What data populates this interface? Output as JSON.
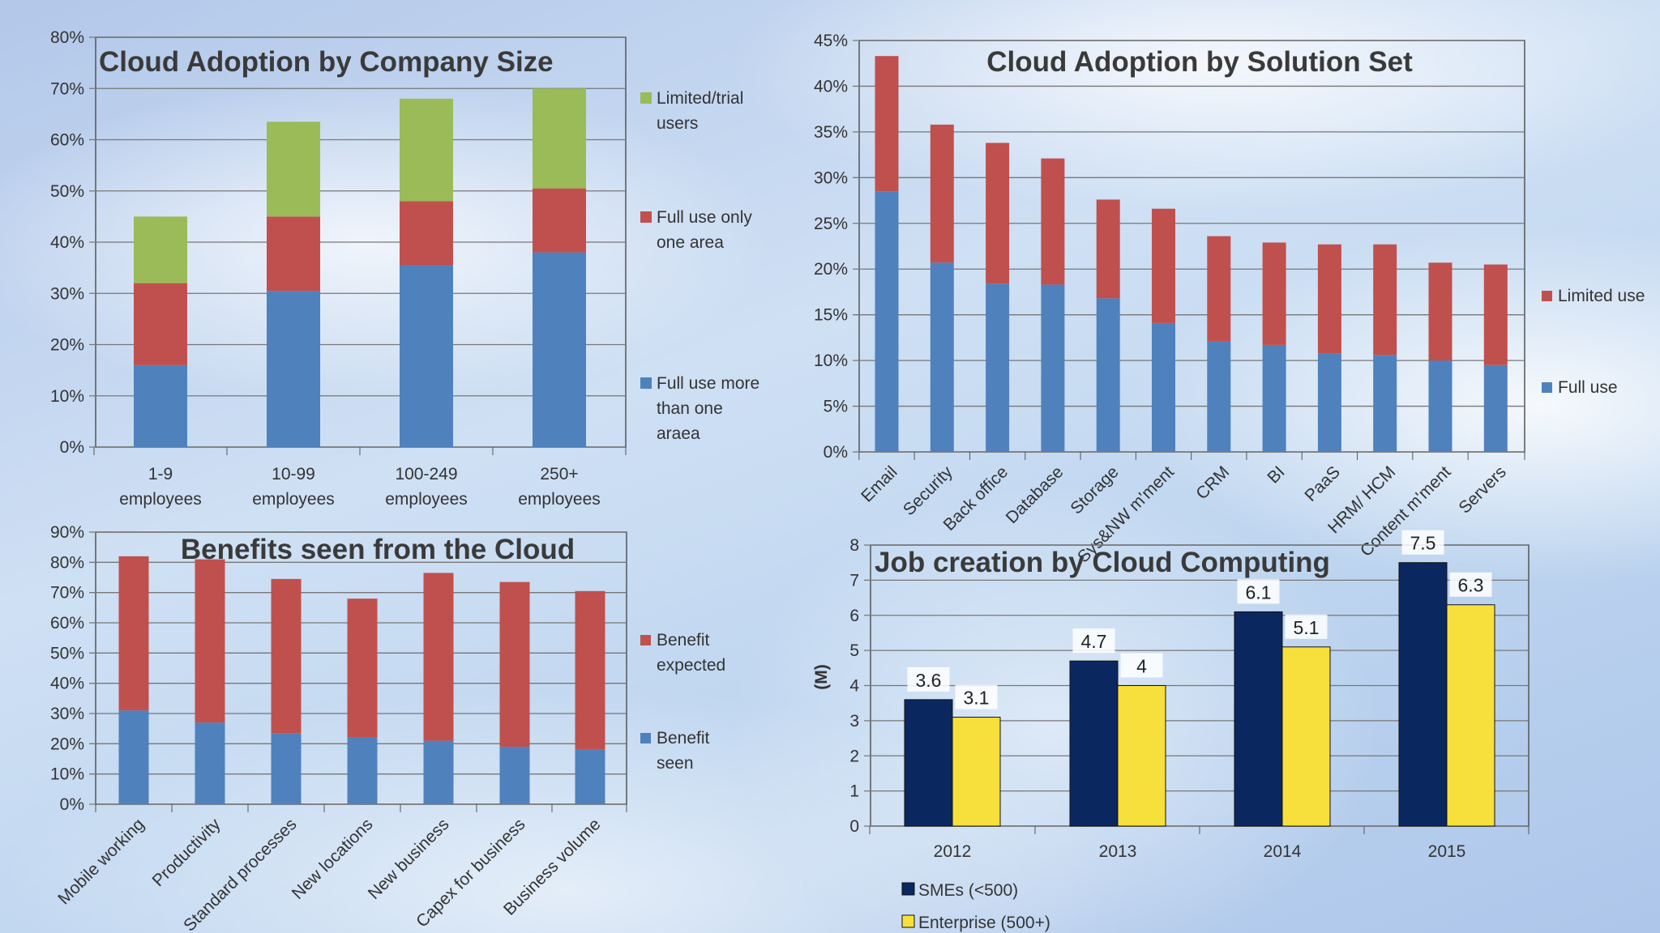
{
  "colors": {
    "blue": "#4f81bd",
    "red": "#c0504d",
    "green": "#9bbb59",
    "navy": "#0a2760",
    "yellow": "#f7e03c"
  },
  "chart_data": [
    {
      "type": "bar",
      "stacked": true,
      "title": "Cloud Adoption by Company Size",
      "ylim": [
        0,
        80
      ],
      "yticks": [
        "0%",
        "10%",
        "20%",
        "30%",
        "40%",
        "50%",
        "60%",
        "70%",
        "80%"
      ],
      "grid": true,
      "legend": "right",
      "categories": [
        [
          "1-9",
          "employees"
        ],
        [
          "10-99",
          "employees"
        ],
        [
          "100-249",
          "employees"
        ],
        [
          "250+",
          "employees"
        ]
      ],
      "series": [
        {
          "name": [
            "Full use more",
            "than one",
            "araea"
          ],
          "color": "#4f81bd",
          "values": [
            16,
            30.5,
            35.5,
            38
          ]
        },
        {
          "name": [
            "Full use only",
            "one area"
          ],
          "color": "#c0504d",
          "values": [
            16,
            14.5,
            12.5,
            12.5
          ]
        },
        {
          "name": [
            "Limited/trial",
            "users"
          ],
          "color": "#9bbb59",
          "values": [
            13,
            18.5,
            20,
            19.5
          ]
        }
      ]
    },
    {
      "type": "bar",
      "stacked": true,
      "title": "Cloud Adoption by Solution Set",
      "ylim": [
        0,
        45
      ],
      "yticks": [
        "0%",
        "5%",
        "10%",
        "15%",
        "20%",
        "25%",
        "30%",
        "35%",
        "40%",
        "45%"
      ],
      "grid": true,
      "legend": "right",
      "categories": [
        "Email",
        "Security",
        "Back office",
        "Database",
        "Storage",
        "Sys&NW m'ment",
        "CRM",
        "BI",
        "PaaS",
        "HRM/ HCM",
        "Content m'ment",
        "Servers"
      ],
      "series": [
        {
          "name": [
            "Full use"
          ],
          "color": "#4f81bd",
          "values": [
            28.5,
            20.7,
            18.4,
            18.3,
            16.8,
            14.1,
            12.1,
            11.7,
            10.8,
            10.6,
            10.0,
            9.5
          ]
        },
        {
          "name": [
            "Limited use"
          ],
          "color": "#c0504d",
          "values": [
            14.8,
            15.1,
            15.4,
            13.8,
            10.8,
            12.5,
            11.5,
            11.2,
            11.9,
            12.1,
            10.7,
            11.0
          ]
        }
      ]
    },
    {
      "type": "bar",
      "stacked": true,
      "title": "Benefits seen from the Cloud",
      "ylim": [
        0,
        90
      ],
      "yticks": [
        "0%",
        "10%",
        "20%",
        "30%",
        "40%",
        "50%",
        "60%",
        "70%",
        "80%",
        "90%"
      ],
      "grid": true,
      "legend": "right",
      "categories": [
        "Mobile working",
        "Productivity",
        "Standard processes",
        "New locations",
        "New business",
        "Capex for business",
        "Business volume"
      ],
      "series": [
        {
          "name": [
            "Benefit",
            "seen"
          ],
          "color": "#4f81bd",
          "values": [
            31,
            27,
            23.5,
            22,
            21,
            19,
            18
          ]
        },
        {
          "name": [
            "Benefit",
            "expected"
          ],
          "color": "#c0504d",
          "values": [
            51,
            54,
            51,
            46,
            55.5,
            54.5,
            52.5
          ]
        }
      ]
    },
    {
      "type": "bar",
      "stacked": false,
      "title": "Job creation by Cloud Computing",
      "ylabel": "(M)",
      "ylim": [
        0,
        8
      ],
      "yticks": [
        "0",
        "1",
        "2",
        "3",
        "4",
        "5",
        "6",
        "7",
        "8"
      ],
      "grid": true,
      "legend": "bottom-left",
      "categories": [
        "2012",
        "2013",
        "2014",
        "2015"
      ],
      "series": [
        {
          "name": "SMEs (<500)",
          "color": "#0a2760",
          "values": [
            3.6,
            4.7,
            6.1,
            7.5
          ],
          "labels": [
            "3.6",
            "4.7",
            "6.1",
            "7.5"
          ]
        },
        {
          "name": "Enterprise (500+)",
          "color": "#f7e03c",
          "values": [
            3.1,
            4,
            5.1,
            6.3
          ],
          "labels": [
            "3.1",
            "4",
            "5.1",
            "6.3"
          ]
        }
      ]
    }
  ]
}
